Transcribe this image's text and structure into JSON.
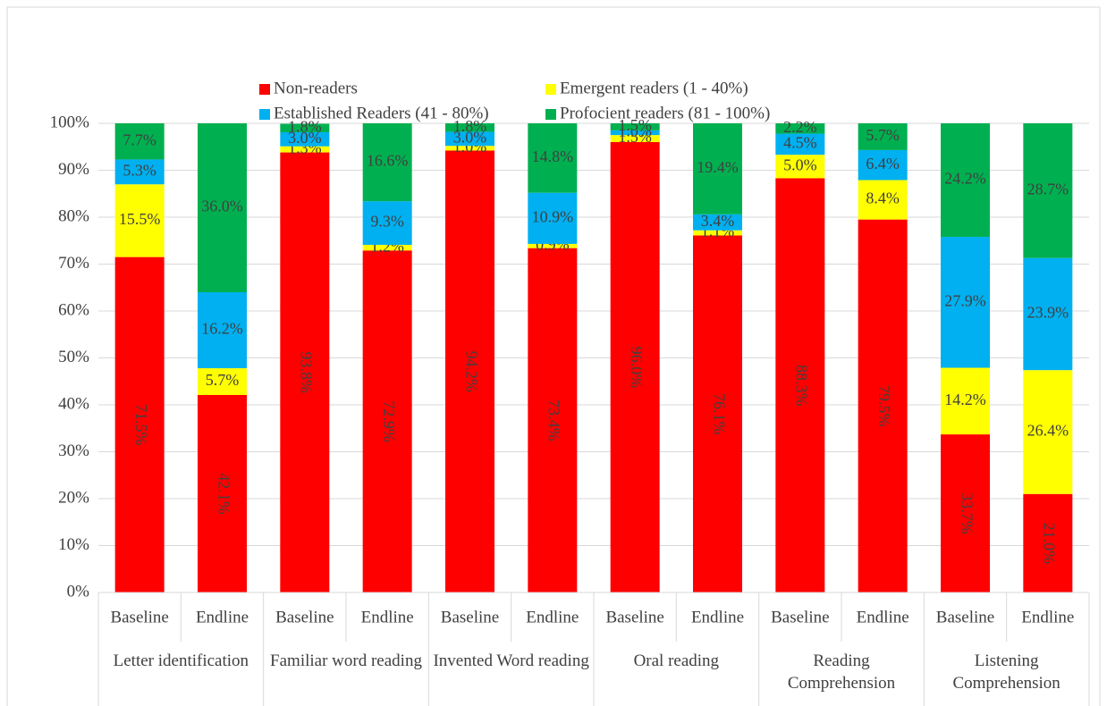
{
  "chart_data": {
    "type": "stacked_bar",
    "categories": [
      "Baseline",
      "Endline",
      "Baseline",
      "Endline",
      "Baseline",
      "Endline",
      "Baseline",
      "Endline",
      "Baseline",
      "Endline",
      "Baseline",
      "Endline"
    ],
    "groups": [
      "Letter identification",
      "Familiar word reading",
      "Invented Word reading",
      "Oral reading",
      "Reading Comprehension",
      "Listening Comprehension"
    ],
    "series": [
      {
        "name": "Non-readers",
        "color": "#ff0000",
        "values": [
          71.5,
          42.1,
          93.8,
          72.9,
          94.2,
          73.4,
          96.0,
          76.1,
          88.3,
          79.5,
          33.7,
          21.0
        ],
        "value_labels": [
          "71.5%",
          "42.1%",
          "93.8%",
          "72.9%",
          "94.2%",
          "73.4%",
          "96.0%",
          "76.1%",
          "88.3%",
          "79.5%",
          "33.7%",
          "21.0%"
        ]
      },
      {
        "name": "Emergent readers (1 - 40%)",
        "color": "#ffff00",
        "values": [
          15.5,
          5.7,
          1.3,
          1.2,
          1.0,
          0.9,
          1.5,
          1.1,
          5.0,
          8.4,
          14.2,
          26.4
        ],
        "value_labels": [
          "15.5%",
          "5.7%",
          "1.3%",
          "1.2%",
          "1.0%",
          "0.9%",
          "1.5%",
          "1.1%",
          "5.0%",
          "8.4%",
          "14.2%",
          "26.4%"
        ]
      },
      {
        "name": "Established Readers (41 - 80%)",
        "color": "#00b0f0",
        "values": [
          5.3,
          16.2,
          3.0,
          9.3,
          3.0,
          10.9,
          1.0,
          3.4,
          4.5,
          6.4,
          27.9,
          23.9
        ],
        "value_labels": [
          "5.3%",
          "16.2%",
          "3.0%",
          "9.3%",
          "3.0%",
          "10.9%",
          "1.0%",
          "3.4%",
          "4.5%",
          "6.4%",
          "27.9%",
          "23.9%"
        ]
      },
      {
        "name": "Profocient readers (81 - 100%)",
        "color": "#00b050",
        "values": [
          7.7,
          36.0,
          1.8,
          16.6,
          1.8,
          14.8,
          1.5,
          19.4,
          2.2,
          5.7,
          24.2,
          28.7
        ],
        "value_labels": [
          "7.7%",
          "36.0%",
          "1.8%",
          "16.6%",
          "1.8%",
          "14.8%",
          "1.5%",
          "19.4%",
          "2.2%",
          "5.7%",
          "24.2%",
          "28.7%"
        ]
      }
    ],
    "ylim": [
      0,
      100
    ],
    "yticks": [
      {
        "value": 0,
        "label": "0%"
      },
      {
        "value": 10,
        "label": "10%"
      },
      {
        "value": 20,
        "label": "20%"
      },
      {
        "value": 30,
        "label": "30%"
      },
      {
        "value": 40,
        "label": "40%"
      },
      {
        "value": 50,
        "label": "50%"
      },
      {
        "value": 60,
        "label": "60%"
      },
      {
        "value": 70,
        "label": "70%"
      },
      {
        "value": 80,
        "label": "80%"
      },
      {
        "value": 90,
        "label": "90%"
      },
      {
        "value": 100,
        "label": "100%"
      }
    ],
    "grid": true
  }
}
